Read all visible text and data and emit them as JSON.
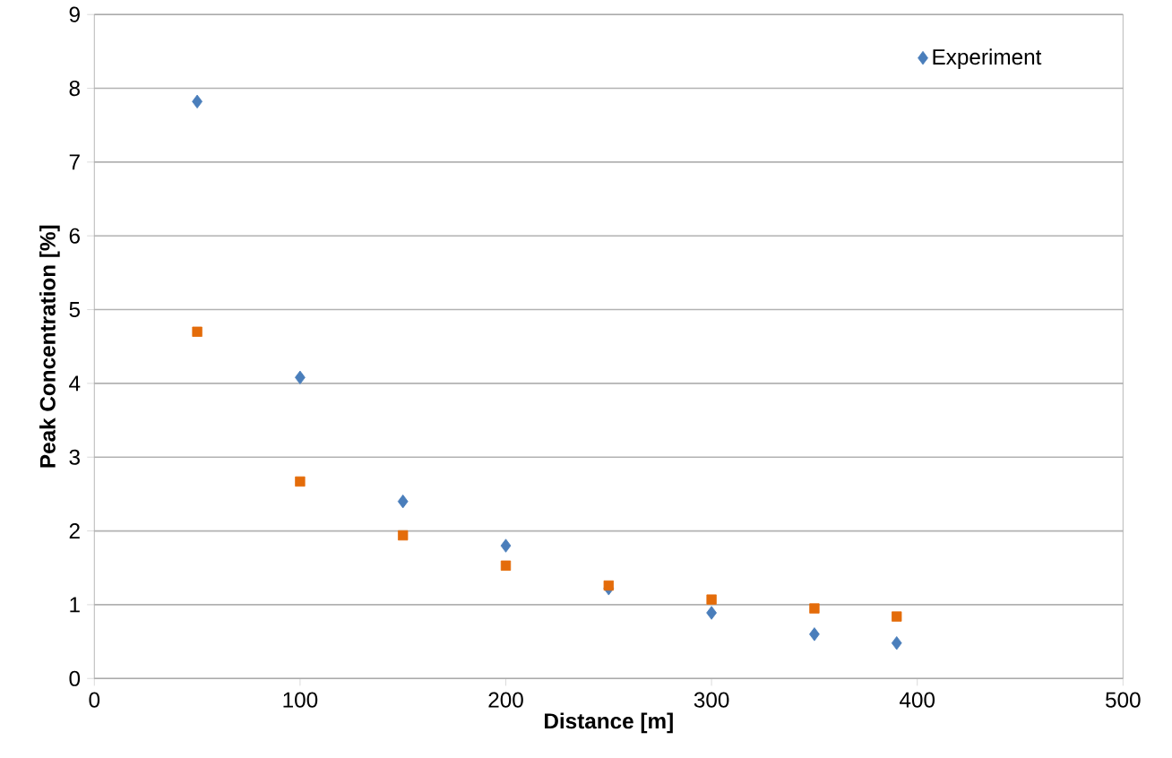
{
  "chart_data": {
    "type": "scatter",
    "xlabel": "Distance [m]",
    "ylabel": "Peak Concentration [%]",
    "xlim": [
      0,
      500
    ],
    "xticks": [
      0,
      100,
      200,
      300,
      400,
      500
    ],
    "ylim": [
      0,
      9
    ],
    "yticks": [
      0,
      1,
      2,
      3,
      4,
      5,
      6,
      7,
      8,
      9
    ],
    "grid": "y",
    "legend": "top right",
    "series": [
      {
        "name": "Experiment",
        "color": "#4a7ebb",
        "marker": "diamond",
        "x": [
          50,
          100,
          150,
          200,
          250,
          300,
          350,
          390
        ],
        "values": [
          7.82,
          4.08,
          2.4,
          1.8,
          1.22,
          0.89,
          0.6,
          0.48
        ]
      },
      {
        "color": "#e46c0a",
        "marker": "square",
        "x": [
          50,
          100,
          150,
          200,
          250,
          300,
          350,
          390
        ],
        "values": [
          4.7,
          2.67,
          1.94,
          1.53,
          1.26,
          1.07,
          0.95,
          0.84
        ]
      }
    ]
  }
}
